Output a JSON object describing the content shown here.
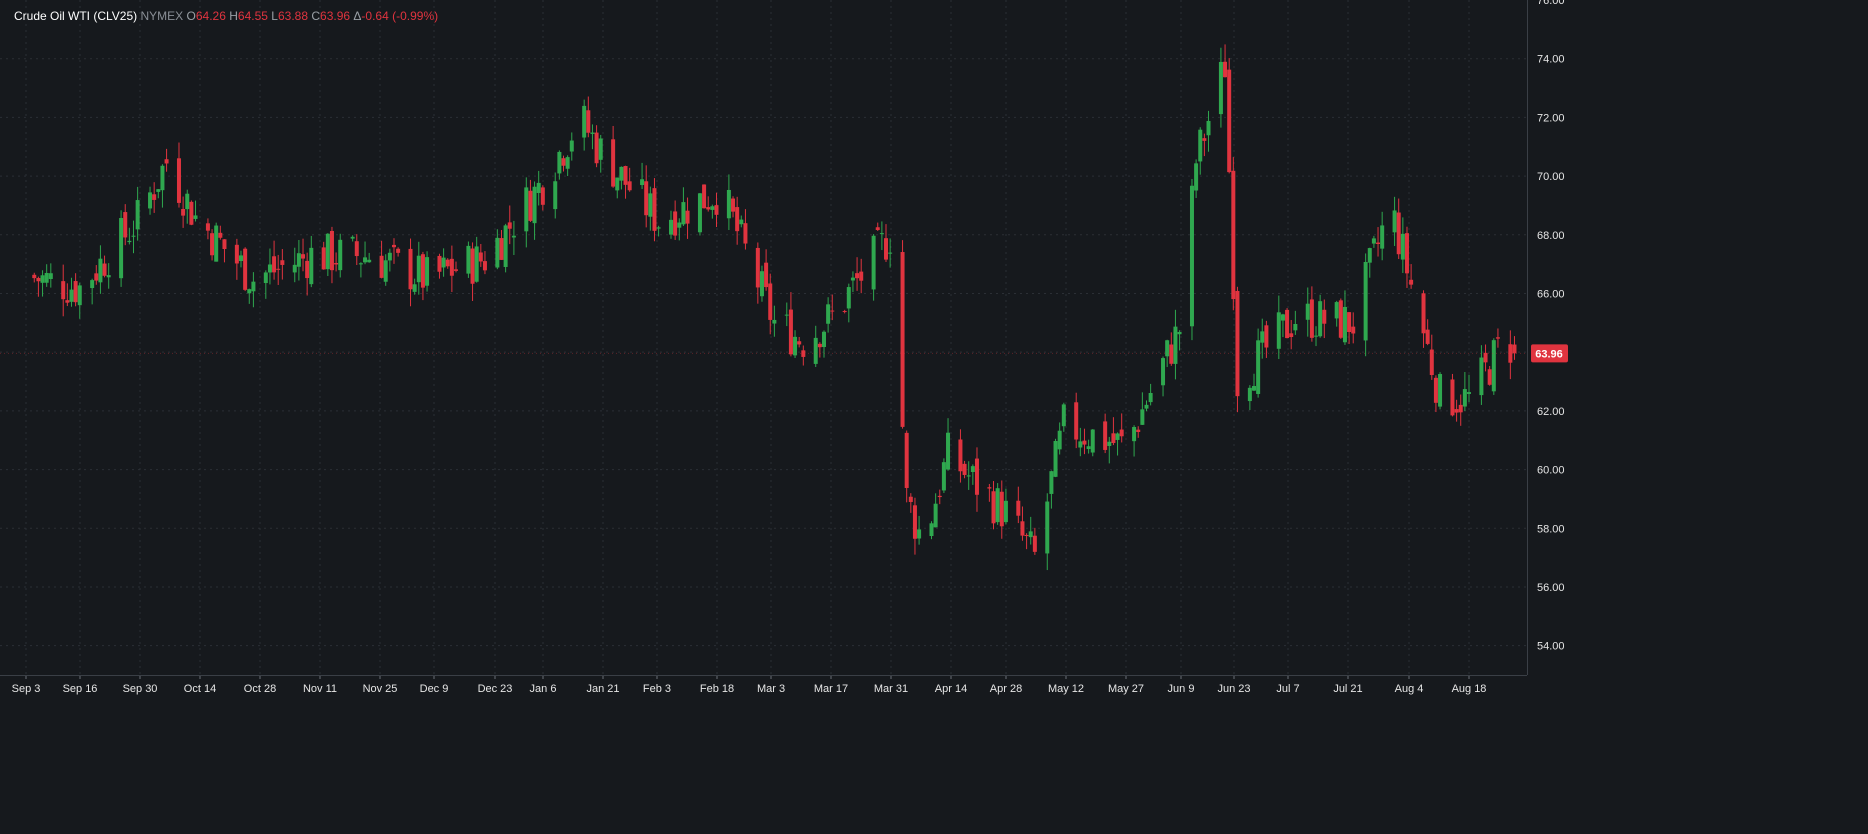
{
  "header": {
    "symbol": "Crude Oil WTI (CLV25)",
    "exchange": "NYMEX",
    "open_label": "O",
    "open": "64.26",
    "high_label": "H",
    "high": "64.55",
    "low_label": "L",
    "low": "63.88",
    "close_label": "C",
    "close": "63.96",
    "change_label": "Δ",
    "change": "-0.64 (-0.99%)"
  },
  "last_price_label": "63.96",
  "colors": {
    "background": "#16191d",
    "up": "#2fa84f",
    "down": "#e0343f",
    "grid": "#2b2f35",
    "text": "#e6e6e6",
    "axis": "#3a3f46"
  },
  "chart_data": {
    "type": "candlestick",
    "title": "Crude Oil WTI (CLV25)",
    "ylim": [
      53,
      76
    ],
    "yticks": [
      "54.00",
      "56.00",
      "58.00",
      "60.00",
      "62.00",
      "64.00",
      "66.00",
      "68.00",
      "70.00",
      "72.00",
      "74.00"
    ],
    "xticks": [
      "Sep 3",
      "Sep 16",
      "Sep 30",
      "Oct 14",
      "Oct 28",
      "Nov 11",
      "Nov 25",
      "Dec 9",
      "Dec 23",
      "Jan 6",
      "Jan 21",
      "Feb 3",
      "Feb 18",
      "Mar 3",
      "Mar 17",
      "Mar 31",
      "Apr 14",
      "Apr 28",
      "May 12",
      "May 27",
      "Jun 9",
      "Jun 23",
      "Jul 7",
      "Jul 21",
      "Aug 4",
      "Aug 18"
    ],
    "grid": true,
    "last_price": 63.96,
    "series_anchors": [
      {
        "date": "Sep 3",
        "close": 66.6
      },
      {
        "date": "Sep 16",
        "close": 66.2
      },
      {
        "date": "Sep 30",
        "close": 68.5
      },
      {
        "date": "Oct 7",
        "close": 70.5
      },
      {
        "date": "Oct 14",
        "close": 68.6
      },
      {
        "date": "Oct 28",
        "close": 66.5
      },
      {
        "date": "Nov 11",
        "close": 67.3
      },
      {
        "date": "Nov 25",
        "close": 67.3
      },
      {
        "date": "Dec 9",
        "close": 66.5
      },
      {
        "date": "Dec 23",
        "close": 67.2
      },
      {
        "date": "Jan 6",
        "close": 69.8
      },
      {
        "date": "Jan 15",
        "close": 72.0
      },
      {
        "date": "Jan 21",
        "close": 70.6
      },
      {
        "date": "Feb 3",
        "close": 68.5
      },
      {
        "date": "Feb 18",
        "close": 69.5
      },
      {
        "date": "Mar 3",
        "close": 65.0
      },
      {
        "date": "Mar 10",
        "close": 64.4
      },
      {
        "date": "Mar 17",
        "close": 65.2
      },
      {
        "date": "Mar 31",
        "close": 68.0
      },
      {
        "date": "Apr 2",
        "close": 64.0
      },
      {
        "date": "Apr 4",
        "close": 59.0
      },
      {
        "date": "Apr 8",
        "close": 57.5
      },
      {
        "date": "Apr 14",
        "close": 60.5
      },
      {
        "date": "Apr 28",
        "close": 58.5
      },
      {
        "date": "May 5",
        "close": 57.0
      },
      {
        "date": "May 12",
        "close": 61.5
      },
      {
        "date": "May 27",
        "close": 60.8
      },
      {
        "date": "Jun 9",
        "close": 64.8
      },
      {
        "date": "Jun 13",
        "close": 70.5
      },
      {
        "date": "Jun 20",
        "close": 73.8
      },
      {
        "date": "Jun 23",
        "close": 63.0
      },
      {
        "date": "Jul 7",
        "close": 65.2
      },
      {
        "date": "Jul 21",
        "close": 65.0
      },
      {
        "date": "Jul 30",
        "close": 69.0
      },
      {
        "date": "Aug 4",
        "close": 66.3
      },
      {
        "date": "Aug 11",
        "close": 62.5
      },
      {
        "date": "Aug 18",
        "close": 62.4
      },
      {
        "date": "Aug 27",
        "close": 64.5
      },
      {
        "date": "Aug 29",
        "close": 63.96
      }
    ]
  }
}
